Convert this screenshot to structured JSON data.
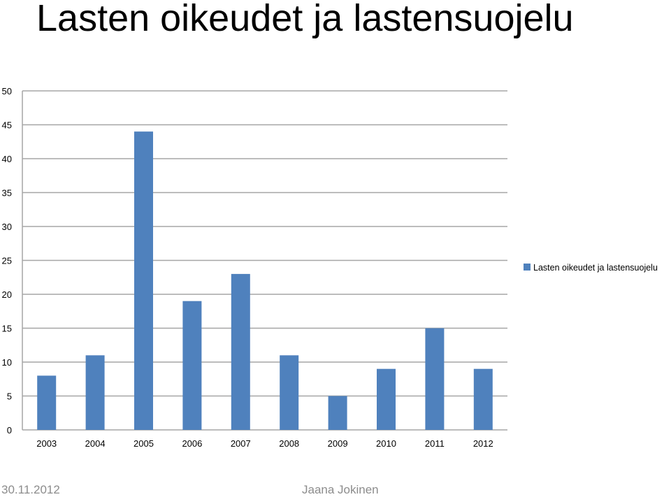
{
  "slide": {
    "title": "Lasten oikeudet ja lastensuojelu",
    "footer_date": "30.11.2012",
    "footer_author": "Jaana Jokinen"
  },
  "colors": {
    "bar": "#4f81bd",
    "grid": "#a6a6a6",
    "axis": "#a6a6a6",
    "text": "#000000",
    "footer": "#8c8c8c"
  },
  "chart_data": {
    "type": "bar",
    "title": "",
    "xlabel": "",
    "ylabel": "",
    "categories": [
      "2003",
      "2004",
      "2005",
      "2006",
      "2007",
      "2008",
      "2009",
      "2010",
      "2011",
      "2012"
    ],
    "series": [
      {
        "name": "Lasten oikeudet ja lastensuojelu",
        "values": [
          8,
          11,
          44,
          19,
          23,
          11,
          5,
          9,
          15,
          9
        ]
      }
    ],
    "ylim": [
      0,
      50
    ],
    "yticks": [
      0,
      5,
      10,
      15,
      20,
      25,
      30,
      35,
      40,
      45,
      50
    ],
    "grid": true,
    "legend_position": "right"
  }
}
